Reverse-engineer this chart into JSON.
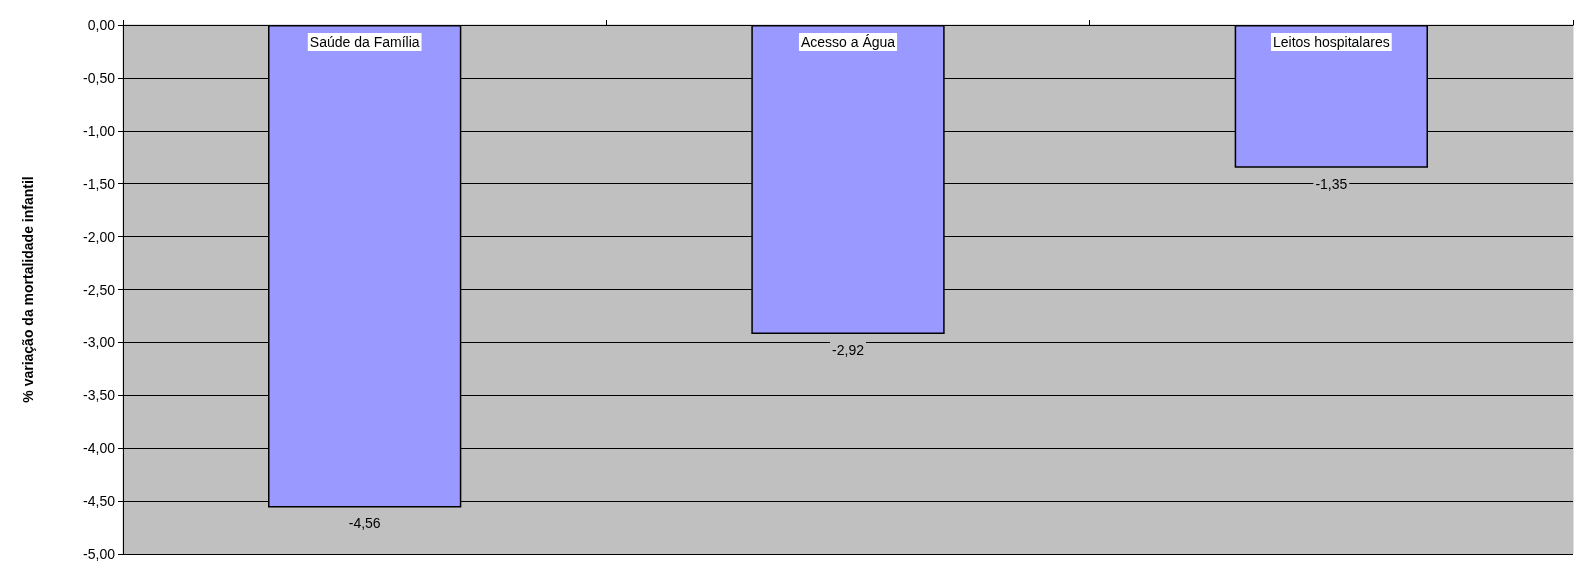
{
  "chart_data": {
    "type": "bar",
    "ylabel": "% variação da mortalidade infantil",
    "categories": [
      "Saúde da Família",
      "Acesso a Água",
      "Leitos hospitalares"
    ],
    "values": [
      -4.56,
      -2.92,
      -1.35
    ],
    "value_labels": [
      "-4,56",
      "-2,92",
      "-1,35"
    ],
    "color": "#9999ff",
    "ylim": [
      -5,
      0
    ],
    "yticks": [
      {
        "value": 0,
        "label": "0,00"
      },
      {
        "value": -0.5,
        "label": "-0,50"
      },
      {
        "value": -1,
        "label": "-1,00"
      },
      {
        "value": -1.5,
        "label": "-1,50"
      },
      {
        "value": -2,
        "label": "-2,00"
      },
      {
        "value": -2.5,
        "label": "-2,50"
      },
      {
        "value": -3,
        "label": "-3,00"
      },
      {
        "value": -3.5,
        "label": "-3,50"
      },
      {
        "value": -4,
        "label": "-4,00"
      },
      {
        "value": -4.5,
        "label": "-4,50"
      },
      {
        "value": -5,
        "label": "-5,00"
      }
    ],
    "grid": true
  }
}
